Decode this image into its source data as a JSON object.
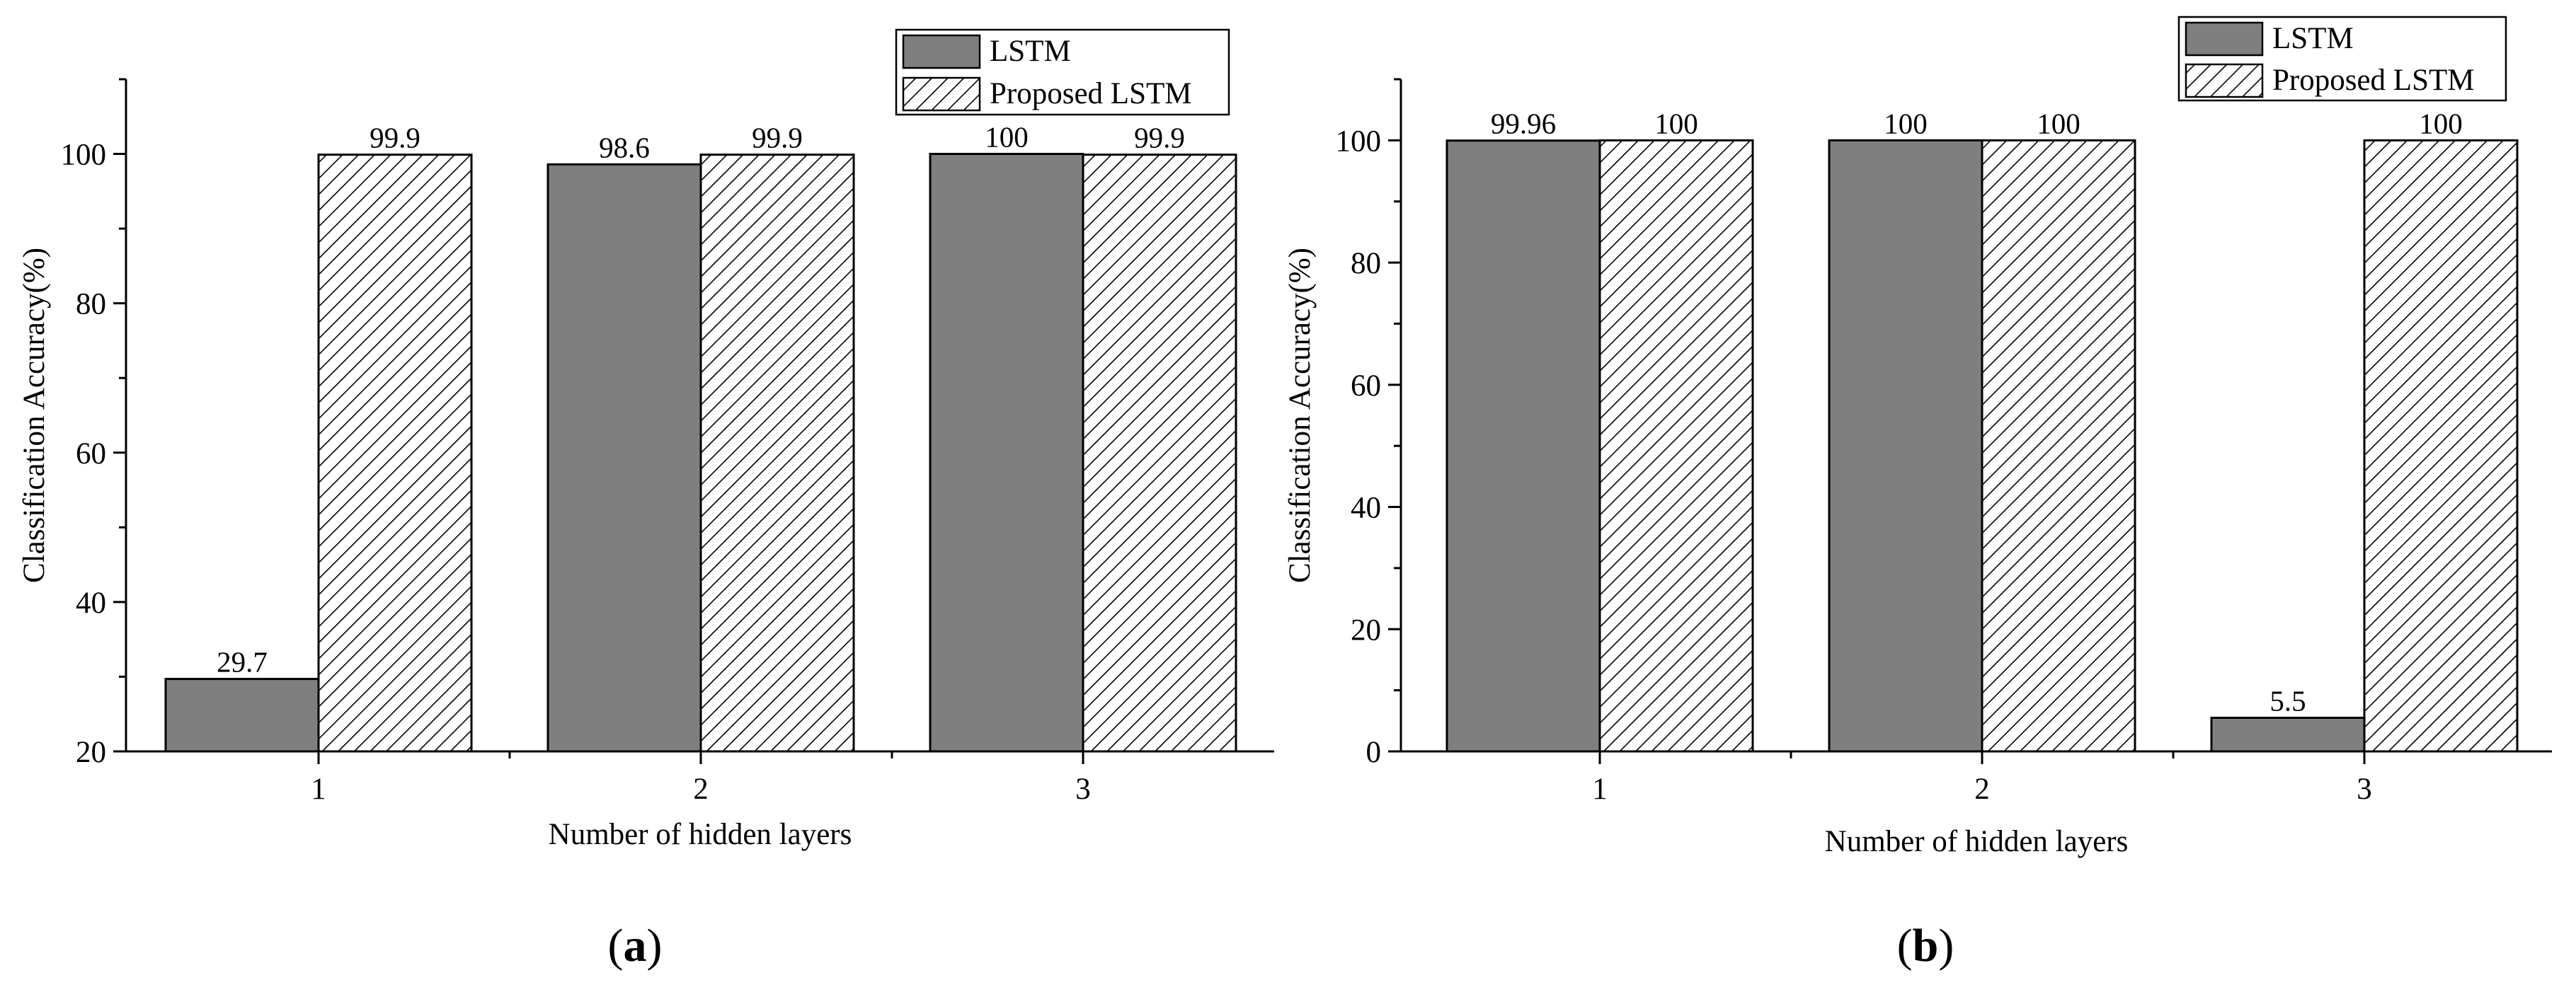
{
  "figure": {
    "panel_labels": [
      {
        "open": "(",
        "letter": "a",
        "close": ")"
      },
      {
        "open": "(",
        "letter": "b",
        "close": ")"
      }
    ]
  },
  "colors": {
    "lstm_fill": "#7f7f7f",
    "hatch_line": "#000000",
    "axis": "#000000",
    "background": "#ffffff"
  },
  "chart_data": [
    {
      "type": "bar",
      "categories": [
        "1",
        "2",
        "3"
      ],
      "xlabel": "Number of hidden layers",
      "ylabel": "Classification Accuracy(%)",
      "ylim": [
        20,
        110
      ],
      "yticks": [
        "20",
        "40",
        "60",
        "80",
        "100"
      ],
      "grid": false,
      "legend_position": "top-right",
      "series": [
        {
          "name": "LSTM",
          "values": [
            29.7,
            98.6,
            100
          ],
          "labels": [
            "29.7",
            "98.6",
            "100"
          ],
          "pattern": "solid-gray"
        },
        {
          "name": "Proposed LSTM",
          "values": [
            99.9,
            99.9,
            99.9
          ],
          "labels": [
            "99.9",
            "99.9",
            "99.9"
          ],
          "pattern": "diagonal-hatch"
        }
      ]
    },
    {
      "type": "bar",
      "categories": [
        "1",
        "2",
        "3"
      ],
      "xlabel": "Number of hidden layers",
      "ylabel": "Classification Accuracy(%)",
      "ylim": [
        0,
        110
      ],
      "yticks": [
        "0",
        "20",
        "40",
        "60",
        "80",
        "100"
      ],
      "grid": false,
      "legend_position": "top-right",
      "series": [
        {
          "name": "LSTM",
          "values": [
            99.96,
            100,
            5.5
          ],
          "labels": [
            "99.96",
            "100",
            "5.5"
          ],
          "pattern": "solid-gray"
        },
        {
          "name": "Proposed LSTM",
          "values": [
            100,
            100,
            100
          ],
          "labels": [
            "100",
            "100",
            "100"
          ],
          "pattern": "diagonal-hatch"
        }
      ]
    }
  ]
}
